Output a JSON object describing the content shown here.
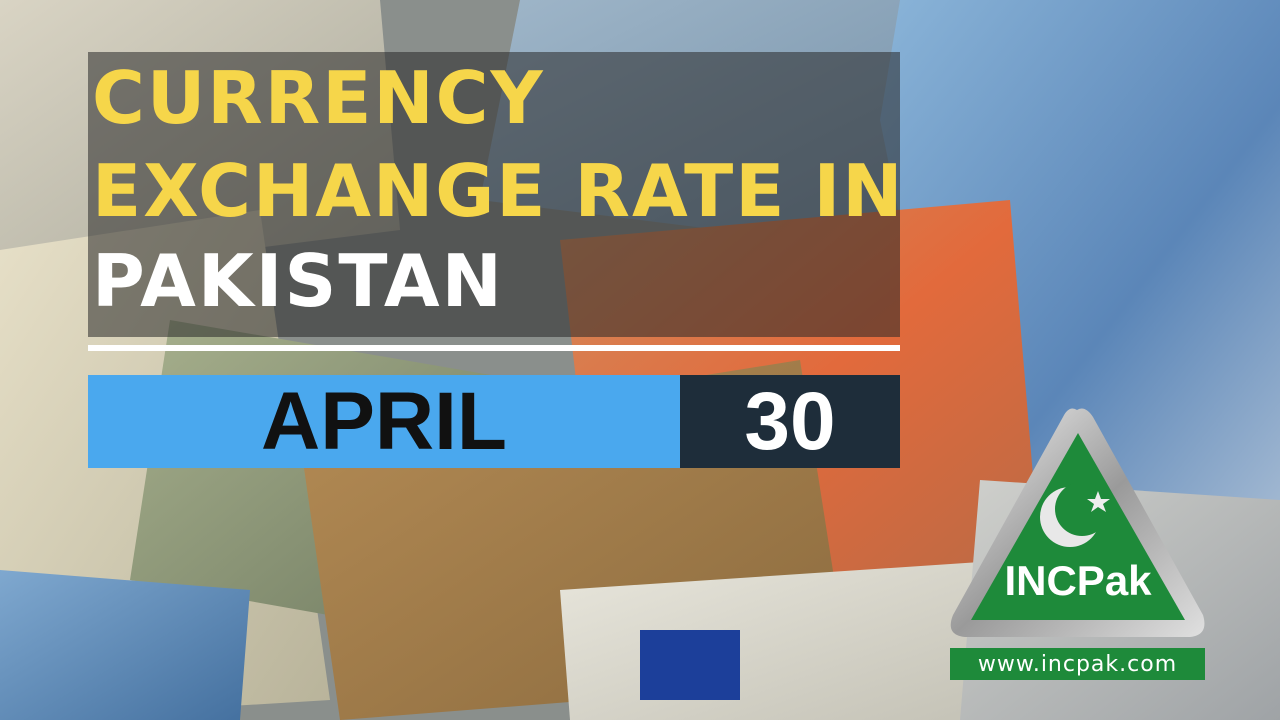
{
  "title": {
    "line1": "CURRENCY",
    "line2": "EXCHANGE RATE IN",
    "line3": "PAKISTAN"
  },
  "date": {
    "month": "APRIL",
    "day": "30"
  },
  "logo": {
    "name": "INCPak",
    "url": "www.incpak.com",
    "icon": "crescent-star-icon"
  },
  "colors": {
    "title_yellow": "#f6d64a",
    "month_bar": "#4aa8ee",
    "day_bar": "#1e2d3a",
    "logo_green": "#1e8a3a"
  }
}
